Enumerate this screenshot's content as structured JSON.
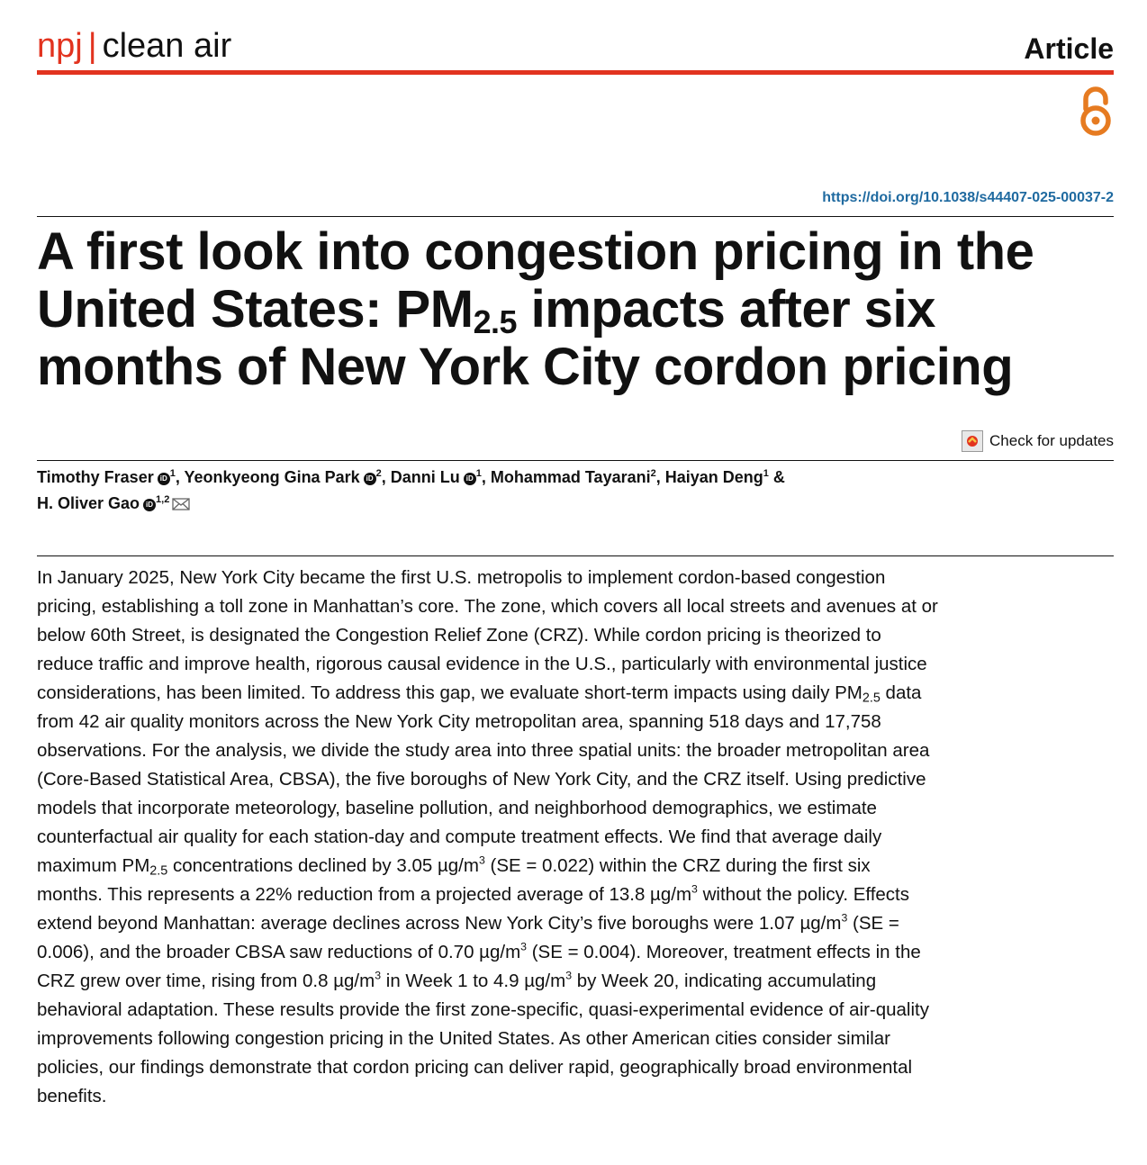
{
  "header": {
    "brand_prefix": "npj",
    "brand_separator": "|",
    "journal_name": "clean air",
    "article_type": "Article"
  },
  "open_access_icon": "open-access-icon",
  "doi": "https://doi.org/10.1038/s44407-025-00037-2",
  "title": {
    "line_start": "A first look into congestion pricing in the United States: PM",
    "subscript": "2.5",
    "line_end": " impacts after six months of New York City cordon pricing"
  },
  "check_for_updates": "Check for updates",
  "authors": [
    {
      "name": "Timothy Fraser",
      "orcid": true,
      "affiliation": "1",
      "sep": ", "
    },
    {
      "name": "Yeonkyeong Gina Park",
      "orcid": true,
      "affiliation": "2",
      "sep": ", "
    },
    {
      "name": "Danni Lu",
      "orcid": true,
      "affiliation": "1",
      "sep": ", "
    },
    {
      "name": "Mohammad Tayarani",
      "orcid": false,
      "affiliation": "2",
      "sep": ", "
    },
    {
      "name": "Haiyan Deng",
      "orcid": false,
      "affiliation": "1",
      "sep": " & "
    },
    {
      "name": "H. Oliver Gao",
      "orcid": true,
      "affiliation": "1,2",
      "sep": ""
    }
  ],
  "orcid_label": "iD",
  "abstract": {
    "p1": "In January 2025, New York City became the first U.S. metropolis to implement cordon-based congestion pricing, establishing a toll zone in Manhattan’s core. The zone, which covers all local streets and avenues at or below 60th Street, is designated the Congestion Relief Zone (CRZ). While cordon pricing is theorized to reduce traffic and improve health, rigorous causal evidence in the U.S., particularly with environmental justice considerations, has been limited. To address this gap, we evaluate short-term impacts using daily PM",
    "sub1": "2.5",
    "p2": " data from 42 air quality monitors across the New York City metropolitan area, spanning 518 days and 17,758 observations. For the analysis, we divide the study area into three spatial units: the broader metropolitan area (Core-Based Statistical Area, CBSA), the five boroughs of New York City, and the CRZ itself. Using predictive models that incorporate meteorology, baseline pollution, and neighborhood demographics, we estimate counterfactual air quality for each station-day and compute treatment effects. We find that average daily maximum PM",
    "sub2": "2.5",
    "p3": " concentrations declined by 3.05 µg/m",
    "sup1": "3",
    "p4": " (SE = 0.022) within the CRZ during the first six months. This represents a 22% reduction from a projected average of 13.8 µg/m",
    "sup2": "3",
    "p5": " without the policy. Effects extend beyond Manhattan: average declines across New York City’s five boroughs were 1.07 µg/m",
    "sup3": "3",
    "p6": " (SE = 0.006), and the broader CBSA saw reductions of 0.70 µg/m",
    "sup4": "3",
    "p7": " (SE = 0.004). Moreover, treatment effects in the CRZ grew over time, rising from 0.8 µg/m",
    "sup5": "3",
    "p8": " in Week 1 to 4.9 µg/m",
    "sup6": "3",
    "p9": " by Week 20, indicating accumulating behavioral adaptation. These results provide the first zone-specific, quasi-experimental evidence of air-quality improvements following congestion pricing in the United States. As other American cities consider similar policies, our findings demonstrate that cordon pricing can deliver rapid, geographically broad environmental benefits."
  },
  "colors": {
    "brand_red": "#e2331f",
    "open_access_orange": "#e67b21",
    "doi_blue": "#1f6aa0"
  }
}
